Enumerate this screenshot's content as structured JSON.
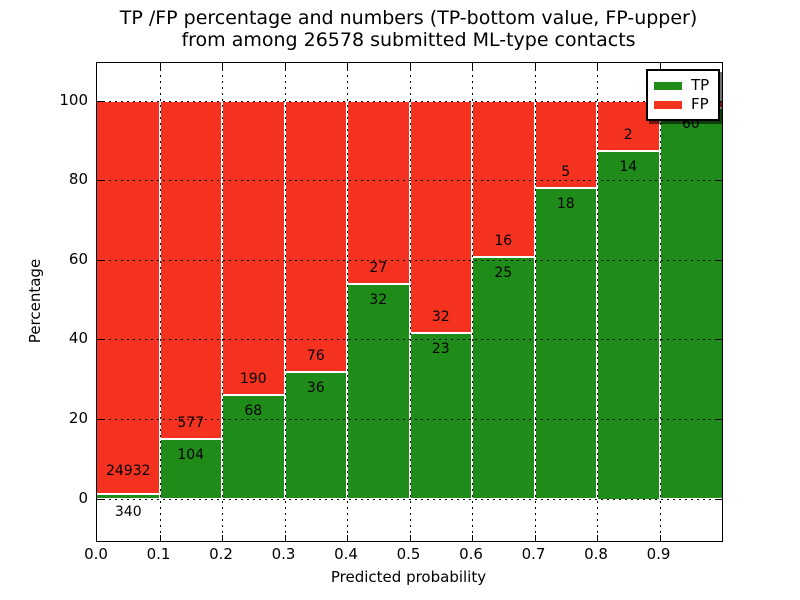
{
  "title": {
    "line1": "TP /FP percentage and numbers (TP-bottom value, FP-upper)",
    "line2": "from among 26578 submitted ML-type contacts"
  },
  "axes": {
    "xlabel": "Predicted probability",
    "ylabel": "Percentage",
    "x_ticks": [
      {
        "v": 0.0,
        "label": "0.0"
      },
      {
        "v": 0.1,
        "label": "0.1"
      },
      {
        "v": 0.2,
        "label": "0.2"
      },
      {
        "v": 0.3,
        "label": "0.3"
      },
      {
        "v": 0.4,
        "label": "0.4"
      },
      {
        "v": 0.5,
        "label": "0.5"
      },
      {
        "v": 0.6,
        "label": "0.6"
      },
      {
        "v": 0.7,
        "label": "0.7"
      },
      {
        "v": 0.8,
        "label": "0.8"
      },
      {
        "v": 0.9,
        "label": "0.9"
      }
    ],
    "y_ticks": [
      {
        "v": 0,
        "label": "0"
      },
      {
        "v": 20,
        "label": "20"
      },
      {
        "v": 40,
        "label": "40"
      },
      {
        "v": 60,
        "label": "60"
      },
      {
        "v": 80,
        "label": "80"
      },
      {
        "v": 100,
        "label": "100"
      }
    ],
    "xlim": [
      0.0,
      1.0
    ],
    "ylim": [
      -10.7,
      109.4
    ],
    "grid": true
  },
  "legend": {
    "position": "upper-right",
    "items": [
      {
        "label": "TP",
        "color": "#1f8c1a"
      },
      {
        "label": "FP",
        "color": "#f5321f"
      }
    ]
  },
  "chart_data": {
    "type": "bar",
    "stacked": true,
    "normalized_to_percent": true,
    "title": "TP /FP percentage and numbers (TP-bottom value, FP-upper) from among 26578 submitted ML-type contacts",
    "xlabel": "Predicted probability",
    "ylabel": "Percentage",
    "total_contacts": 26578,
    "bin_edges": [
      0.0,
      0.1,
      0.2,
      0.3,
      0.4,
      0.5,
      0.6,
      0.7,
      0.8,
      0.9,
      1.0
    ],
    "bins": [
      "0.0-0.1",
      "0.1-0.2",
      "0.2-0.3",
      "0.3-0.4",
      "0.4-0.5",
      "0.5-0.6",
      "0.6-0.7",
      "0.7-0.8",
      "0.8-0.9",
      "0.9-1.0"
    ],
    "series": [
      {
        "name": "TP",
        "color": "#1f8c1a",
        "values": [
          340,
          104,
          68,
          36,
          32,
          23,
          25,
          18,
          14,
          60
        ]
      },
      {
        "name": "FP",
        "color": "#f5321f",
        "values": [
          24932,
          577,
          190,
          76,
          27,
          32,
          16,
          5,
          2,
          1
        ]
      }
    ],
    "tp_percent": [
      1.35,
      15.27,
      26.36,
      32.14,
      54.24,
      41.82,
      60.98,
      78.26,
      87.5,
      98.36
    ]
  },
  "style": {
    "tp_color": "#1f8c1a",
    "fp_color": "#f5321f",
    "edge_color": "#ffffff",
    "grid_color": "#000000",
    "background": "#ffffff"
  }
}
